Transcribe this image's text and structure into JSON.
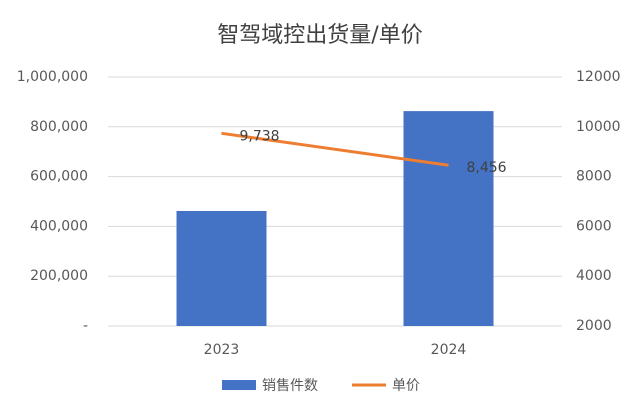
{
  "chart_data": {
    "type": "combo",
    "title": "智驾域控出货量/单价",
    "categories": [
      "2023",
      "2024"
    ],
    "series": [
      {
        "name": "销售件数",
        "type": "bar",
        "color": "#4472c4",
        "values": [
          462000,
          863000
        ]
      },
      {
        "name": "单价",
        "type": "line",
        "axis": "y2",
        "color": "#ed7d31",
        "values": [
          9738,
          8456
        ],
        "value_labels": [
          "9,738",
          "8,456"
        ]
      }
    ],
    "ylim": [
      0,
      1000000
    ],
    "yticks": [
      {
        "value": 0,
        "label": "-"
      },
      {
        "value": 200000,
        "label": "200,000"
      },
      {
        "value": 400000,
        "label": "400,000"
      },
      {
        "value": 600000,
        "label": "600,000"
      },
      {
        "value": 800000,
        "label": "800,000"
      },
      {
        "value": 1000000,
        "label": "1,000,000"
      }
    ],
    "y2lim": [
      2000,
      12000
    ],
    "y2ticks": [
      2000,
      4000,
      6000,
      8000,
      10000,
      12000
    ],
    "grid": true,
    "legend": "bottom"
  }
}
